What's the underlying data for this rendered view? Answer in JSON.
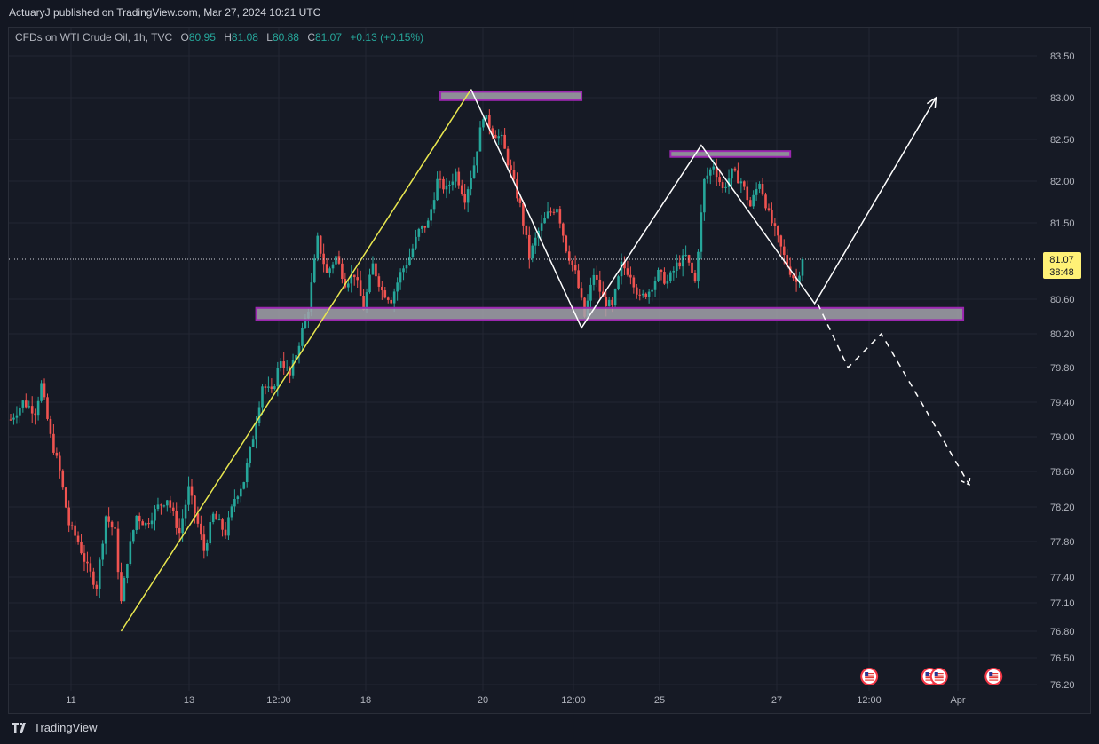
{
  "header": {
    "published": "ActuaryJ published on TradingView.com, Mar 27, 2024 10:21 UTC"
  },
  "legend": {
    "symbol": "CFDs on WTI Crude Oil, 1h, TVC",
    "open_label": "O",
    "open": "80.95",
    "high_label": "H",
    "high": "81.08",
    "low_label": "L",
    "low": "80.88",
    "close_label": "C",
    "close": "81.07",
    "change": "+0.13 (+0.15%)"
  },
  "price_tag": {
    "price": "81.07",
    "countdown": "38:48"
  },
  "footer": {
    "brand": "TradingView"
  },
  "colors": {
    "up": "#26a69a",
    "down": "#ef5350",
    "yellow_line": "#e9e74f",
    "zone_fill": "#a3a3ab",
    "zone_border": "#9c27b0",
    "pattern": "#ffffff",
    "bg": "#161a25"
  },
  "chart_data": {
    "type": "candlestick",
    "timeframe": "1h",
    "ylim": [
      76.2,
      83.55
    ],
    "y_ticks": [
      "83.50",
      "83.00",
      "82.50",
      "82.00",
      "81.50",
      "80.60",
      "80.20",
      "79.80",
      "79.40",
      "79.00",
      "78.60",
      "78.20",
      "77.80",
      "77.40",
      "77.10",
      "76.80",
      "76.50",
      "76.20"
    ],
    "x_ticks": [
      "11",
      "13",
      "12:00",
      "18",
      "20",
      "12:00",
      "25",
      "27",
      "12:00",
      "Apr"
    ],
    "last_price": 81.07,
    "series_waypoints": [
      [
        0,
        79.2
      ],
      [
        4,
        79.4
      ],
      [
        8,
        79.3
      ],
      [
        10,
        79.6
      ],
      [
        13,
        79.0
      ],
      [
        16,
        78.6
      ],
      [
        19,
        78.0
      ],
      [
        22,
        77.8
      ],
      [
        25,
        77.5
      ],
      [
        28,
        77.3
      ],
      [
        31,
        78.1
      ],
      [
        34,
        77.9
      ],
      [
        36,
        77.1
      ],
      [
        38,
        77.6
      ],
      [
        41,
        78.1
      ],
      [
        44,
        78.0
      ],
      [
        48,
        78.2
      ],
      [
        51,
        78.3
      ],
      [
        55,
        77.9
      ],
      [
        58,
        78.4
      ],
      [
        61,
        78.0
      ],
      [
        63,
        77.7
      ],
      [
        66,
        78.1
      ],
      [
        70,
        77.9
      ],
      [
        73,
        78.3
      ],
      [
        76,
        78.5
      ],
      [
        79,
        79.0
      ],
      [
        82,
        79.6
      ],
      [
        85,
        79.5
      ],
      [
        88,
        79.9
      ],
      [
        91,
        79.7
      ],
      [
        94,
        80.1
      ],
      [
        97,
        80.5
      ],
      [
        100,
        81.3
      ],
      [
        103,
        80.9
      ],
      [
        106,
        81.1
      ],
      [
        109,
        80.8
      ],
      [
        112,
        80.9
      ],
      [
        115,
        80.5
      ],
      [
        118,
        81.0
      ],
      [
        121,
        80.7
      ],
      [
        124,
        80.6
      ],
      [
        127,
        80.9
      ],
      [
        130,
        81.1
      ],
      [
        133,
        81.4
      ],
      [
        136,
        81.5
      ],
      [
        139,
        82.0
      ],
      [
        142,
        81.9
      ],
      [
        145,
        82.1
      ],
      [
        148,
        81.8
      ],
      [
        151,
        82.2
      ],
      [
        154,
        82.8
      ],
      [
        157,
        82.6
      ],
      [
        160,
        82.5
      ],
      [
        163,
        82.1
      ],
      [
        166,
        81.7
      ],
      [
        169,
        81.1
      ],
      [
        172,
        81.4
      ],
      [
        175,
        81.6
      ],
      [
        178,
        81.7
      ],
      [
        181,
        81.2
      ],
      [
        184,
        80.9
      ],
      [
        187,
        80.4
      ],
      [
        190,
        80.9
      ],
      [
        193,
        80.6
      ],
      [
        196,
        80.5
      ],
      [
        199,
        81.0
      ],
      [
        202,
        80.9
      ],
      [
        205,
        80.6
      ],
      [
        208,
        80.7
      ],
      [
        211,
        80.9
      ],
      [
        214,
        80.8
      ],
      [
        217,
        81.0
      ],
      [
        220,
        81.1
      ],
      [
        223,
        80.8
      ],
      [
        226,
        82.0
      ],
      [
        229,
        82.2
      ],
      [
        232,
        81.9
      ],
      [
        235,
        82.1
      ],
      [
        238,
        82.0
      ],
      [
        241,
        81.7
      ],
      [
        244,
        82.0
      ],
      [
        247,
        81.6
      ],
      [
        250,
        81.3
      ],
      [
        253,
        81.0
      ],
      [
        256,
        80.8
      ],
      [
        258,
        81.07
      ]
    ],
    "annotations": {
      "resistance_zones": [
        {
          "x": [
            140,
            186
          ],
          "y": [
            82.97,
            83.07
          ]
        },
        {
          "x": [
            215,
            254
          ],
          "y": [
            82.29,
            82.36
          ]
        }
      ],
      "support_zone": {
        "x": [
          80,
          311
        ],
        "y": [
          80.36,
          80.5
        ]
      },
      "yellow_trendline": {
        "from": [
          36,
          76.8
        ],
        "to": [
          150,
          83.1
        ]
      },
      "pattern_path": [
        [
          150,
          83.1
        ],
        [
          186,
          80.27
        ],
        [
          225,
          82.43
        ],
        [
          262,
          80.55
        ],
        [
          302,
          83.0
        ]
      ],
      "projection_dashed": [
        [
          263,
          80.55
        ],
        [
          273,
          79.8
        ],
        [
          284,
          80.2
        ],
        [
          313,
          78.45
        ]
      ]
    },
    "events": [
      {
        "x": 280,
        "type": "us-flag"
      },
      {
        "x": 300,
        "type": "us-flag"
      },
      {
        "x": 303,
        "type": "us-flag"
      },
      {
        "x": 321,
        "type": "us-flag"
      }
    ]
  }
}
